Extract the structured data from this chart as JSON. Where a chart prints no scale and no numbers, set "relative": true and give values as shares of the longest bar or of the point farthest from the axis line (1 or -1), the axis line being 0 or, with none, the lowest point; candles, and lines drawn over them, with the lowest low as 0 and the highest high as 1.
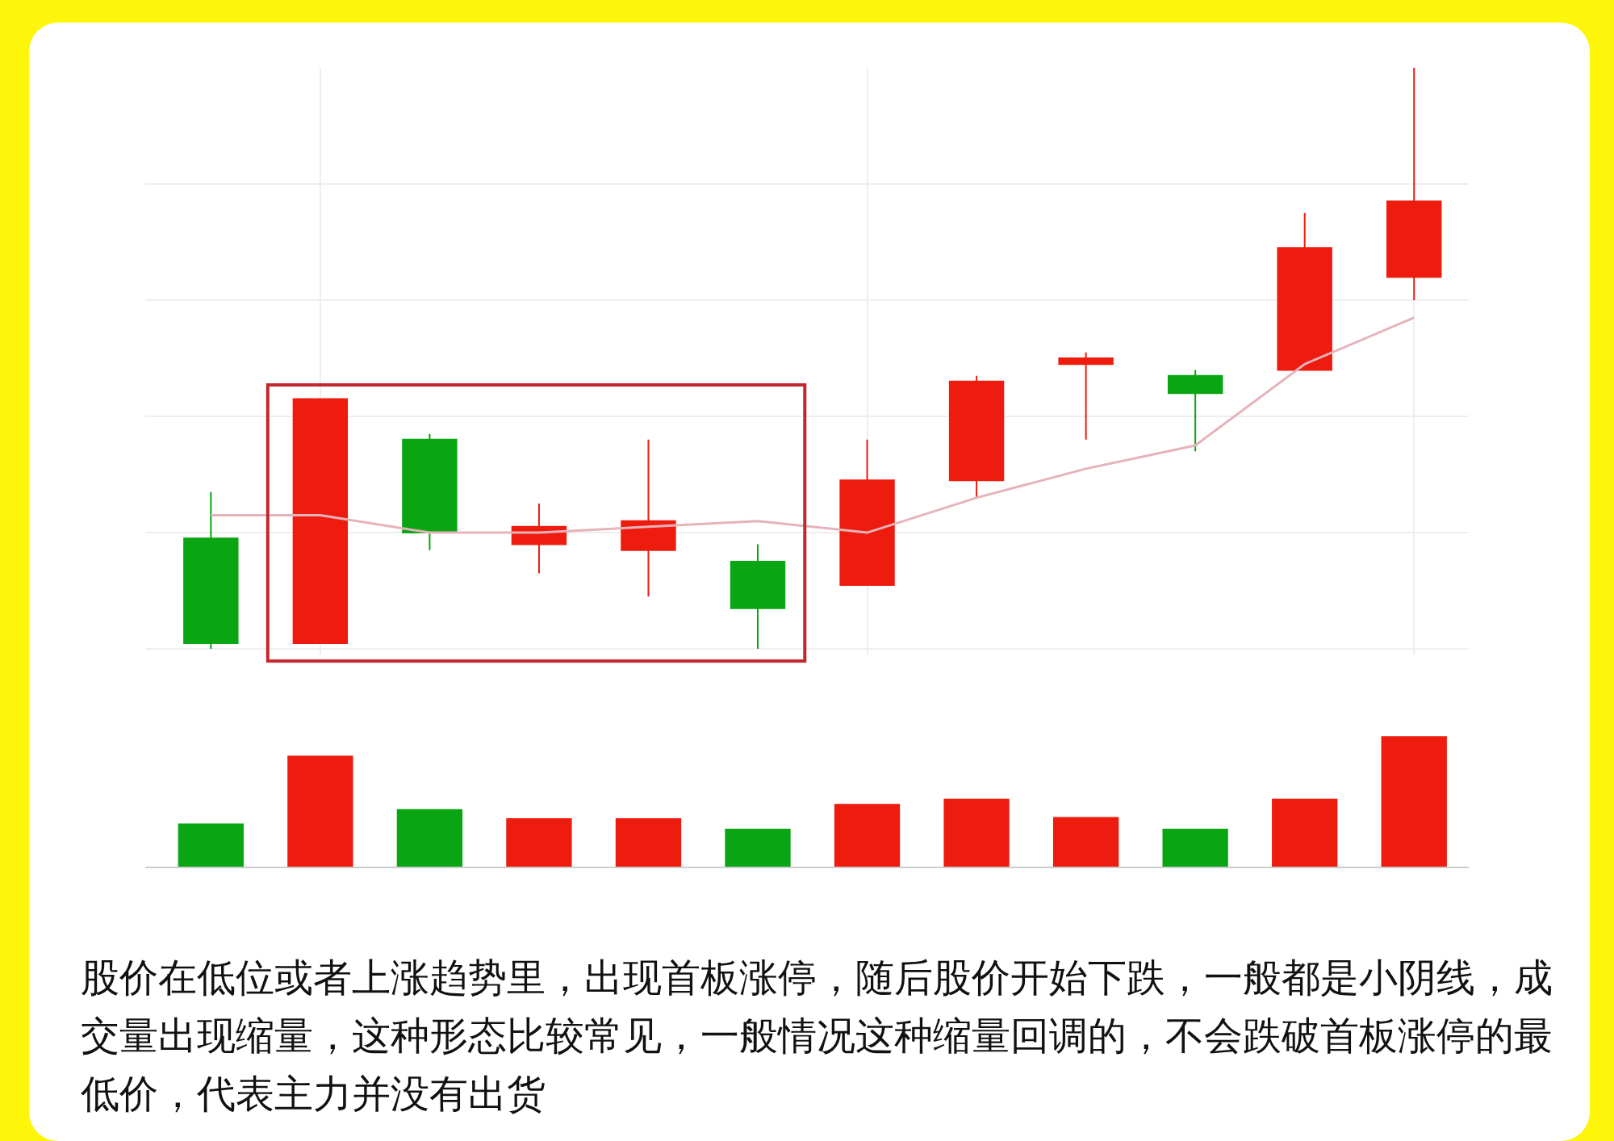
{
  "chart_data": [
    {
      "type": "candlestick",
      "relative": true,
      "grid": true,
      "categories": [
        null,
        null,
        null,
        null,
        null,
        null,
        null,
        null,
        null,
        null,
        null,
        null
      ],
      "ohlc": [
        [
          0.19,
          0.27,
          0.0,
          0.01
        ],
        [
          0.01,
          0.43,
          0.01,
          0.43
        ],
        [
          0.36,
          0.37,
          0.17,
          0.2
        ],
        [
          0.18,
          0.25,
          0.13,
          0.21
        ],
        [
          0.17,
          0.36,
          0.09,
          0.22
        ],
        [
          0.15,
          0.18,
          0.0,
          0.07
        ],
        [
          0.11,
          0.36,
          0.11,
          0.29
        ],
        [
          0.29,
          0.47,
          0.26,
          0.46
        ],
        [
          0.49,
          0.51,
          0.36,
          0.5
        ],
        [
          0.47,
          0.48,
          0.34,
          0.44
        ],
        [
          0.48,
          0.75,
          0.48,
          0.69
        ],
        [
          0.64,
          1.0,
          0.6,
          0.77
        ]
      ],
      "colors": [
        "#0aa512",
        "#ee1c0e",
        "#0aa512",
        "#ee1c0e",
        "#ee1c0e",
        "#0aa512",
        "#ee1c0e",
        "#ee1c0e",
        "#ee1c0e",
        "#0aa512",
        "#ee1c0e",
        "#ee1c0e"
      ],
      "series": [
        {
          "type": "line",
          "color": "#e6b3bb",
          "values": [
            0.23,
            0.23,
            0.2,
            0.2,
            0.21,
            0.22,
            0.2,
            0.26,
            0.31,
            0.35,
            0.49,
            0.57
          ]
        }
      ]
    },
    {
      "type": "bar",
      "relative": true,
      "categories": [
        null,
        null,
        null,
        null,
        null,
        null,
        null,
        null,
        null,
        null,
        null,
        null
      ],
      "values": [
        0.33,
        0.85,
        0.44,
        0.37,
        0.37,
        0.29,
        0.48,
        0.52,
        0.38,
        0.29,
        0.52,
        1
      ],
      "colors": [
        "#0aa512",
        "#ee1c0e",
        "#0aa512",
        "#ee1c0e",
        "#ee1c0e",
        "#0aa512",
        "#ee1c0e",
        "#ee1c0e",
        "#ee1c0e",
        "#0aa512",
        "#ee1c0e",
        "#ee1c0e"
      ],
      "annotations": [
        "股价在低位或者上涨趋势里，出现首板涨停，随后股价开始下跌，一般都是小阴线，成交量出现缩量，这种形态比较常见，一般情况这种缩量回调的，不会跌破首板涨停的最低价，代表主力并没有出货"
      ]
    }
  ]
}
